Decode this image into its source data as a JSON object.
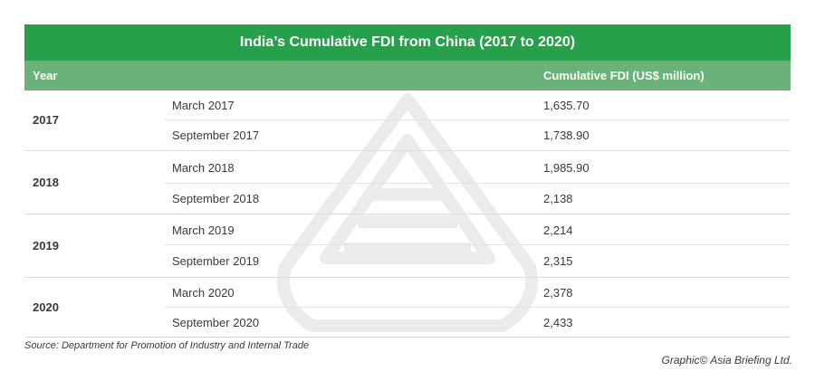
{
  "title": "India’s Cumulative FDI from China (2017 to 2020)",
  "header": {
    "year": "Year",
    "fdi": "Cumulative FDI (US$ million)"
  },
  "rows": [
    {
      "year": "2017",
      "periods": [
        {
          "period": "March 2017",
          "value": "1,635.70"
        },
        {
          "period": "September 2017",
          "value": "1,738.90"
        }
      ]
    },
    {
      "year": "2018",
      "periods": [
        {
          "period": "March 2018",
          "value": "1,985.90"
        },
        {
          "period": "September 2018",
          "value": "2,138"
        }
      ]
    },
    {
      "year": "2019",
      "periods": [
        {
          "period": "March 2019",
          "value": "2,214"
        },
        {
          "period": "September 2019",
          "value": "2,315"
        }
      ]
    },
    {
      "year": "2020",
      "periods": [
        {
          "period": "March 2020",
          "value": "2,378"
        },
        {
          "period": "September 2020",
          "value": "2,433"
        }
      ]
    }
  ],
  "source": "Source: Department for Promotion of Industry and Internal Trade",
  "credit": "Graphic© Asia Briefing Ltd.",
  "colors": {
    "title_bg": "#26a04a",
    "header_bg": "#6ab27a",
    "text": "#3a3a3a"
  }
}
